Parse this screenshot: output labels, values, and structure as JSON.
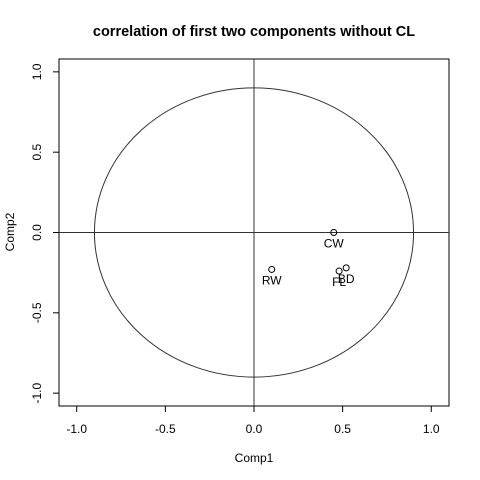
{
  "chart_data": {
    "type": "scatter",
    "title": "correlation of first two components without CL",
    "xlabel": "Comp1",
    "ylabel": "Comp2",
    "xlim": [
      -1.1,
      1.1
    ],
    "ylim": [
      -1.08,
      1.08
    ],
    "xticks": [
      -1.0,
      -0.5,
      0.0,
      0.5,
      1.0
    ],
    "yticks": [
      -1.0,
      -0.5,
      0.0,
      0.5,
      1.0
    ],
    "xtick_labels": [
      "-1.0",
      "-0.5",
      "0.0",
      "0.5",
      "1.0"
    ],
    "ytick_labels": [
      "-1.0",
      "-0.5",
      "0.0",
      "0.5",
      "1.0"
    ],
    "reference_circle_radius": 0.9,
    "reference_lines": {
      "vertical": 0,
      "horizontal": 0
    },
    "grid": false,
    "points": [
      {
        "label": "CW",
        "x": 0.45,
        "y": 0.0
      },
      {
        "label": "RW",
        "x": 0.1,
        "y": -0.23
      },
      {
        "label": "FL",
        "x": 0.48,
        "y": -0.24
      },
      {
        "label": "BD",
        "x": 0.52,
        "y": -0.22
      }
    ]
  }
}
